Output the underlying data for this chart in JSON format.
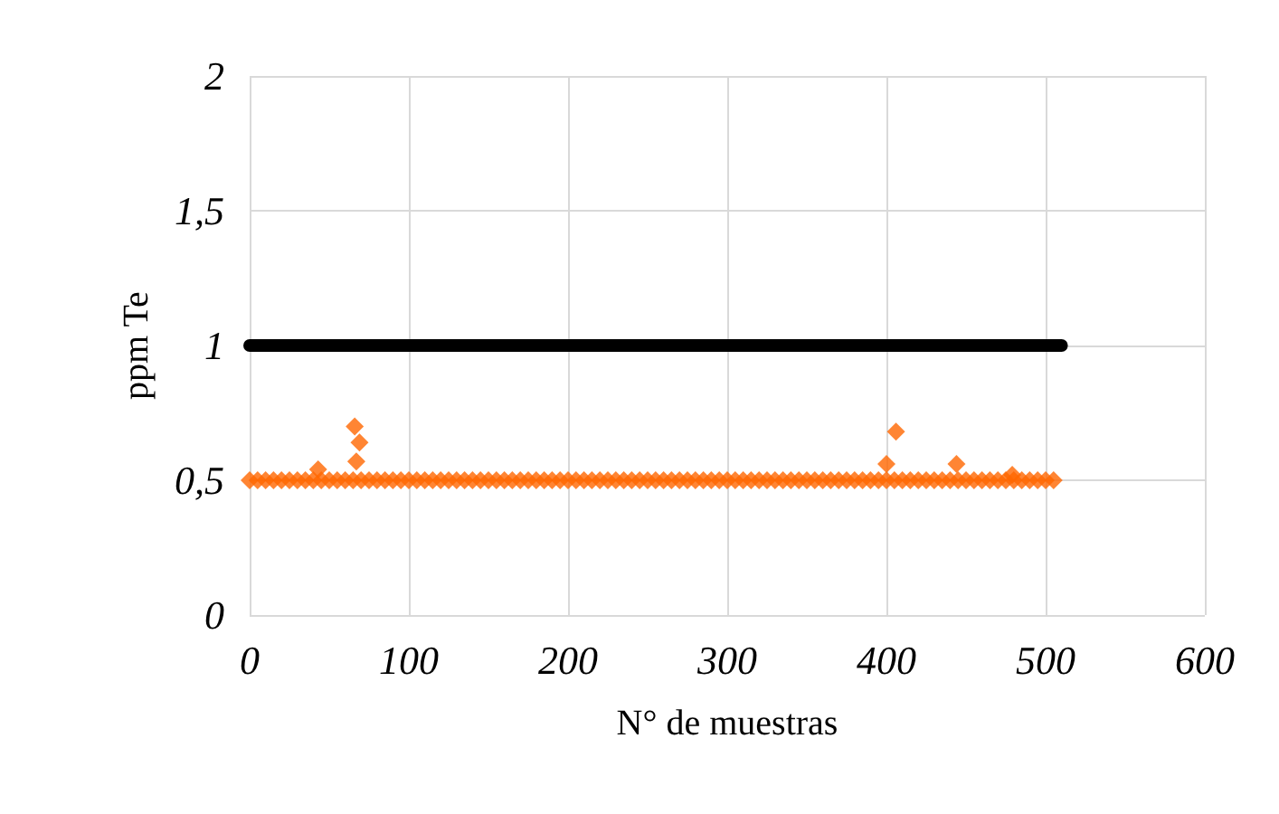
{
  "chart_data": {
    "type": "scatter",
    "xlabel": "N° de muestras",
    "ylabel": "ppm Te",
    "xlim": [
      0,
      600
    ],
    "xticks": [
      0,
      100,
      200,
      300,
      400,
      500,
      600
    ],
    "ylim": [
      0,
      2
    ],
    "yticks": [
      {
        "value": 0,
        "label": "0"
      },
      {
        "value": 0.5,
        "label": "0,5"
      },
      {
        "value": 1,
        "label": "1"
      },
      {
        "value": 1.5,
        "label": "1,5"
      },
      {
        "value": 2,
        "label": "2"
      }
    ],
    "grid": true,
    "marker": "diamond",
    "series": [
      {
        "type": "line",
        "marker": "none",
        "line_style": "solid",
        "color": "#000000",
        "x": [
          0,
          510
        ],
        "values": [
          1,
          1
        ]
      },
      {
        "color": "#ff6600",
        "x": [
          0,
          5,
          10,
          15,
          20,
          25,
          30,
          35,
          40,
          45,
          50,
          55,
          60,
          65,
          70,
          75,
          80,
          85,
          90,
          95,
          100,
          105,
          110,
          115,
          120,
          125,
          130,
          135,
          140,
          145,
          150,
          155,
          160,
          165,
          170,
          175,
          180,
          185,
          190,
          195,
          200,
          205,
          210,
          215,
          220,
          225,
          230,
          235,
          240,
          245,
          250,
          255,
          260,
          265,
          270,
          275,
          280,
          285,
          290,
          295,
          300,
          305,
          310,
          315,
          320,
          325,
          330,
          335,
          340,
          345,
          350,
          355,
          360,
          365,
          370,
          375,
          380,
          385,
          390,
          395,
          400,
          405,
          410,
          415,
          420,
          425,
          430,
          435,
          440,
          445,
          450,
          455,
          460,
          465,
          470,
          475,
          480,
          485,
          490,
          495,
          500,
          505,
          43,
          66,
          67,
          69,
          400,
          406,
          444,
          479
        ],
        "values": [
          0.5,
          0.5,
          0.5,
          0.5,
          0.5,
          0.5,
          0.5,
          0.5,
          0.5,
          0.5,
          0.5,
          0.5,
          0.5,
          0.5,
          0.5,
          0.5,
          0.5,
          0.5,
          0.5,
          0.5,
          0.5,
          0.5,
          0.5,
          0.5,
          0.5,
          0.5,
          0.5,
          0.5,
          0.5,
          0.5,
          0.5,
          0.5,
          0.5,
          0.5,
          0.5,
          0.5,
          0.5,
          0.5,
          0.5,
          0.5,
          0.5,
          0.5,
          0.5,
          0.5,
          0.5,
          0.5,
          0.5,
          0.5,
          0.5,
          0.5,
          0.5,
          0.5,
          0.5,
          0.5,
          0.5,
          0.5,
          0.5,
          0.5,
          0.5,
          0.5,
          0.5,
          0.5,
          0.5,
          0.5,
          0.5,
          0.5,
          0.5,
          0.5,
          0.5,
          0.5,
          0.5,
          0.5,
          0.5,
          0.5,
          0.5,
          0.5,
          0.5,
          0.5,
          0.5,
          0.5,
          0.5,
          0.5,
          0.5,
          0.5,
          0.5,
          0.5,
          0.5,
          0.5,
          0.5,
          0.5,
          0.5,
          0.5,
          0.5,
          0.5,
          0.5,
          0.5,
          0.5,
          0.5,
          0.5,
          0.5,
          0.5,
          0.5,
          0.54,
          0.7,
          0.57,
          0.64,
          0.56,
          0.68,
          0.56,
          0.52
        ]
      }
    ]
  }
}
